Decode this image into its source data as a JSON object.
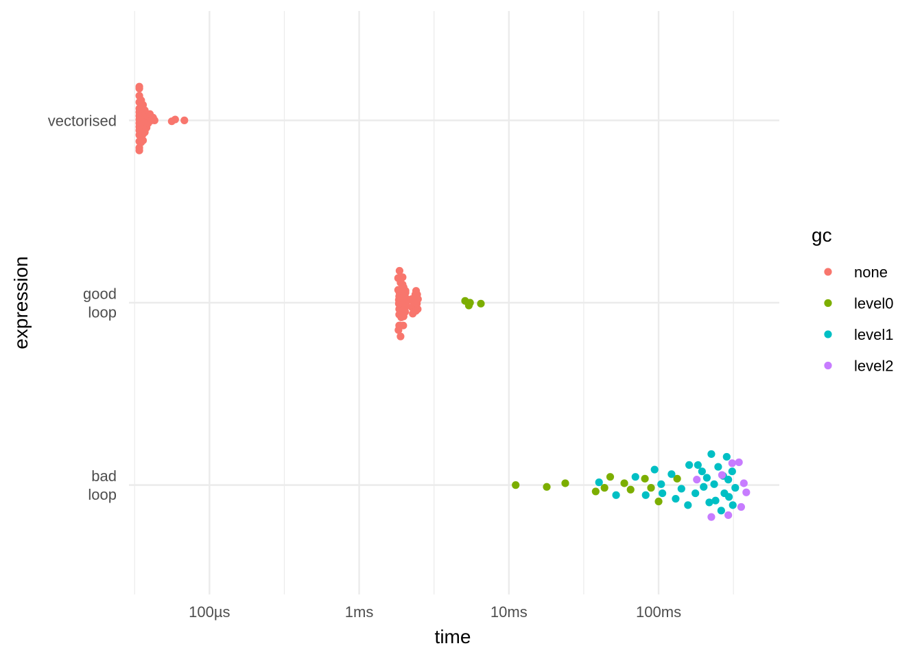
{
  "chart_data": {
    "type": "scatter",
    "xlabel": "time",
    "ylabel": "expression",
    "x_scale": "log10",
    "x_unit": "seconds",
    "xlim": [
      2.9e-05,
      0.64
    ],
    "x_ticks": [
      {
        "value": 0.0001,
        "label": "100µs"
      },
      {
        "value": 0.001,
        "label": "1ms"
      },
      {
        "value": 0.01,
        "label": "10ms"
      },
      {
        "value": 0.1,
        "label": "100ms"
      }
    ],
    "categories": [
      {
        "key": "vectorised",
        "lines": [
          "vectorised"
        ]
      },
      {
        "key": "good loop",
        "lines": [
          "good",
          "loop"
        ]
      },
      {
        "key": "bad loop",
        "lines": [
          "bad",
          "loop"
        ]
      }
    ],
    "grid": true,
    "legend_position": "right",
    "legend": {
      "title": "gc",
      "entries": [
        {
          "key": "none",
          "label": "none",
          "color": "#F8766D"
        },
        {
          "key": "level0",
          "label": "level0",
          "color": "#7CAE00"
        },
        {
          "key": "level1",
          "label": "level1",
          "color": "#00BFC4"
        },
        {
          "key": "level2",
          "label": "level2",
          "color": "#C77CFF"
        }
      ]
    },
    "series": [
      {
        "expression": "vectorised",
        "points": [
          [
            3.4e-05,
            0.37,
            "none"
          ],
          [
            3.4e-05,
            0.35,
            "none"
          ],
          [
            3.4e-05,
            0.27,
            "none"
          ],
          [
            3.4e-05,
            0.2,
            "none"
          ],
          [
            3.4e-05,
            0.13,
            "none"
          ],
          [
            3.4e-05,
            0.09,
            "none"
          ],
          [
            3.4e-05,
            0.05,
            "none"
          ],
          [
            3.4e-05,
            0.01,
            "none"
          ],
          [
            3.4e-05,
            -0.03,
            "none"
          ],
          [
            3.4e-05,
            -0.07,
            "none"
          ],
          [
            3.4e-05,
            -0.11,
            "none"
          ],
          [
            3.4e-05,
            -0.16,
            "none"
          ],
          [
            3.4e-05,
            -0.23,
            "none"
          ],
          [
            3.4e-05,
            -0.3,
            "none"
          ],
          [
            3.4e-05,
            -0.33,
            "none"
          ],
          [
            3.5e-05,
            0.22,
            "none"
          ],
          [
            3.5e-05,
            0.15,
            "none"
          ],
          [
            3.5e-05,
            0.06,
            "none"
          ],
          [
            3.5e-05,
            -0.02,
            "none"
          ],
          [
            3.5e-05,
            -0.12,
            "none"
          ],
          [
            3.5e-05,
            -0.2,
            "none"
          ],
          [
            3.5e-05,
            -0.24,
            "none"
          ],
          [
            3.6e-05,
            0.17,
            "none"
          ],
          [
            3.6e-05,
            0.08,
            "none"
          ],
          [
            3.6e-05,
            0.03,
            "none"
          ],
          [
            3.6e-05,
            -0.04,
            "none"
          ],
          [
            3.6e-05,
            -0.09,
            "none"
          ],
          [
            3.6e-05,
            -0.15,
            "none"
          ],
          [
            3.6e-05,
            -0.22,
            "none"
          ],
          [
            3.7e-05,
            0.11,
            "none"
          ],
          [
            3.7e-05,
            0.02,
            "none"
          ],
          [
            3.7e-05,
            -0.06,
            "none"
          ],
          [
            3.7e-05,
            -0.13,
            "none"
          ],
          [
            3.8e-05,
            0.07,
            "none"
          ],
          [
            3.8e-05,
            -0.01,
            "none"
          ],
          [
            3.8e-05,
            -0.08,
            "none"
          ],
          [
            3.9e-05,
            0.04,
            "none"
          ],
          [
            3.9e-05,
            -0.03,
            "none"
          ],
          [
            4e-05,
            0.07,
            "none"
          ],
          [
            4.1e-05,
            0.0,
            "none"
          ],
          [
            4.2e-05,
            0.03,
            "none"
          ],
          [
            4.3e-05,
            0.0,
            "none"
          ],
          [
            5.6e-05,
            -0.01,
            "none"
          ],
          [
            5.9e-05,
            0.01,
            "none"
          ],
          [
            6.8e-05,
            0.0,
            "none"
          ]
        ]
      },
      {
        "expression": "good loop",
        "points": [
          [
            0.00186,
            0.35,
            "none"
          ],
          [
            0.00182,
            0.27,
            "none"
          ],
          [
            0.00195,
            0.28,
            "none"
          ],
          [
            0.00189,
            0.22,
            "none"
          ],
          [
            0.00195,
            0.2,
            "none"
          ],
          [
            0.00198,
            0.17,
            "none"
          ],
          [
            0.00204,
            0.13,
            "none"
          ],
          [
            0.00182,
            0.14,
            "none"
          ],
          [
            0.00186,
            0.11,
            "none"
          ],
          [
            0.0019,
            0.09,
            "none"
          ],
          [
            0.00195,
            0.12,
            "none"
          ],
          [
            0.00204,
            0.11,
            "none"
          ],
          [
            0.00185,
            0.07,
            "none"
          ],
          [
            0.0019,
            0.05,
            "none"
          ],
          [
            0.00197,
            0.07,
            "none"
          ],
          [
            0.00205,
            0.05,
            "none"
          ],
          [
            0.00184,
            0.03,
            "none"
          ],
          [
            0.00187,
            0.01,
            "none"
          ],
          [
            0.00198,
            0.02,
            "none"
          ],
          [
            0.00206,
            0.0,
            "none"
          ],
          [
            0.00184,
            -0.01,
            "none"
          ],
          [
            0.00187,
            -0.03,
            "none"
          ],
          [
            0.00195,
            -0.02,
            "none"
          ],
          [
            0.00205,
            -0.04,
            "none"
          ],
          [
            0.00185,
            -0.07,
            "none"
          ],
          [
            0.00189,
            -0.09,
            "none"
          ],
          [
            0.00197,
            -0.08,
            "none"
          ],
          [
            0.00203,
            -0.1,
            "none"
          ],
          [
            0.00185,
            -0.13,
            "none"
          ],
          [
            0.00191,
            -0.16,
            "none"
          ],
          [
            0.00198,
            -0.15,
            "none"
          ],
          [
            0.00185,
            -0.25,
            "none"
          ],
          [
            0.00183,
            -0.3,
            "none"
          ],
          [
            0.00189,
            -0.37,
            "none"
          ],
          [
            0.00188,
            -0.25,
            "none"
          ],
          [
            0.00197,
            -0.25,
            "none"
          ],
          [
            0.00224,
            0.04,
            "none"
          ],
          [
            0.00228,
            0.02,
            "none"
          ],
          [
            0.00232,
            0.0,
            "none"
          ],
          [
            0.00236,
            -0.02,
            "none"
          ],
          [
            0.00225,
            -0.05,
            "none"
          ],
          [
            0.00235,
            -0.08,
            "none"
          ],
          [
            0.00228,
            -0.12,
            "none"
          ],
          [
            0.00237,
            0.09,
            "none"
          ],
          [
            0.0024,
            0.13,
            "none"
          ],
          [
            0.00244,
            0.09,
            "none"
          ],
          [
            0.00247,
            0.04,
            "none"
          ],
          [
            0.00243,
            -0.01,
            "none"
          ],
          [
            0.00246,
            -0.07,
            "none"
          ],
          [
            0.00239,
            -0.09,
            "none"
          ],
          [
            0.0051,
            0.02,
            "level0"
          ],
          [
            0.0055,
            0.0,
            "level0"
          ],
          [
            0.0054,
            -0.03,
            "level0"
          ],
          [
            0.0065,
            -0.01,
            "level0"
          ]
        ]
      },
      {
        "expression": "bad loop",
        "points": [
          [
            0.0111,
            0.0,
            "level0"
          ],
          [
            0.0179,
            -0.02,
            "level0"
          ],
          [
            0.0238,
            0.02,
            "level0"
          ],
          [
            0.038,
            -0.07,
            "level0"
          ],
          [
            0.0435,
            -0.03,
            "level0"
          ],
          [
            0.0475,
            0.09,
            "level0"
          ],
          [
            0.059,
            0.02,
            "level0"
          ],
          [
            0.065,
            -0.05,
            "level0"
          ],
          [
            0.081,
            0.07,
            "level0"
          ],
          [
            0.089,
            -0.03,
            "level0"
          ],
          [
            0.1,
            -0.18,
            "level0"
          ],
          [
            0.133,
            0.07,
            "level0"
          ],
          [
            0.04,
            0.03,
            "level1"
          ],
          [
            0.052,
            -0.11,
            "level1"
          ],
          [
            0.07,
            0.09,
            "level1"
          ],
          [
            0.082,
            -0.11,
            "level1"
          ],
          [
            0.094,
            0.17,
            "level1"
          ],
          [
            0.104,
            0.01,
            "level1"
          ],
          [
            0.106,
            -0.09,
            "level1"
          ],
          [
            0.122,
            0.12,
            "level1"
          ],
          [
            0.13,
            -0.15,
            "level1"
          ],
          [
            0.142,
            -0.04,
            "level1"
          ],
          [
            0.157,
            -0.22,
            "level1"
          ],
          [
            0.16,
            0.22,
            "level1"
          ],
          [
            0.176,
            -0.09,
            "level1"
          ],
          [
            0.183,
            0.22,
            "level1"
          ],
          [
            0.195,
            0.15,
            "level1"
          ],
          [
            0.2,
            -0.02,
            "level1"
          ],
          [
            0.21,
            0.08,
            "level1"
          ],
          [
            0.218,
            -0.19,
            "level1"
          ],
          [
            0.225,
            0.34,
            "level1"
          ],
          [
            0.235,
            0.01,
            "level1"
          ],
          [
            0.24,
            -0.17,
            "level1"
          ],
          [
            0.25,
            0.2,
            "level1"
          ],
          [
            0.262,
            -0.28,
            "level1"
          ],
          [
            0.27,
            0.1,
            "level1"
          ],
          [
            0.275,
            -0.09,
            "level1"
          ],
          [
            0.285,
            0.31,
            "level1"
          ],
          [
            0.292,
            0.06,
            "level1"
          ],
          [
            0.295,
            -0.13,
            "level1"
          ],
          [
            0.31,
            0.15,
            "level1"
          ],
          [
            0.313,
            -0.22,
            "level1"
          ],
          [
            0.325,
            -0.03,
            "level1"
          ],
          [
            0.18,
            0.06,
            "level2"
          ],
          [
            0.265,
            0.11,
            "level2"
          ],
          [
            0.225,
            -0.35,
            "level2"
          ],
          [
            0.292,
            -0.33,
            "level2"
          ],
          [
            0.31,
            0.24,
            "level2"
          ],
          [
            0.344,
            0.25,
            "level2"
          ],
          [
            0.356,
            -0.24,
            "level2"
          ],
          [
            0.371,
            0.02,
            "level2"
          ],
          [
            0.385,
            -0.08,
            "level2"
          ]
        ]
      }
    ]
  }
}
